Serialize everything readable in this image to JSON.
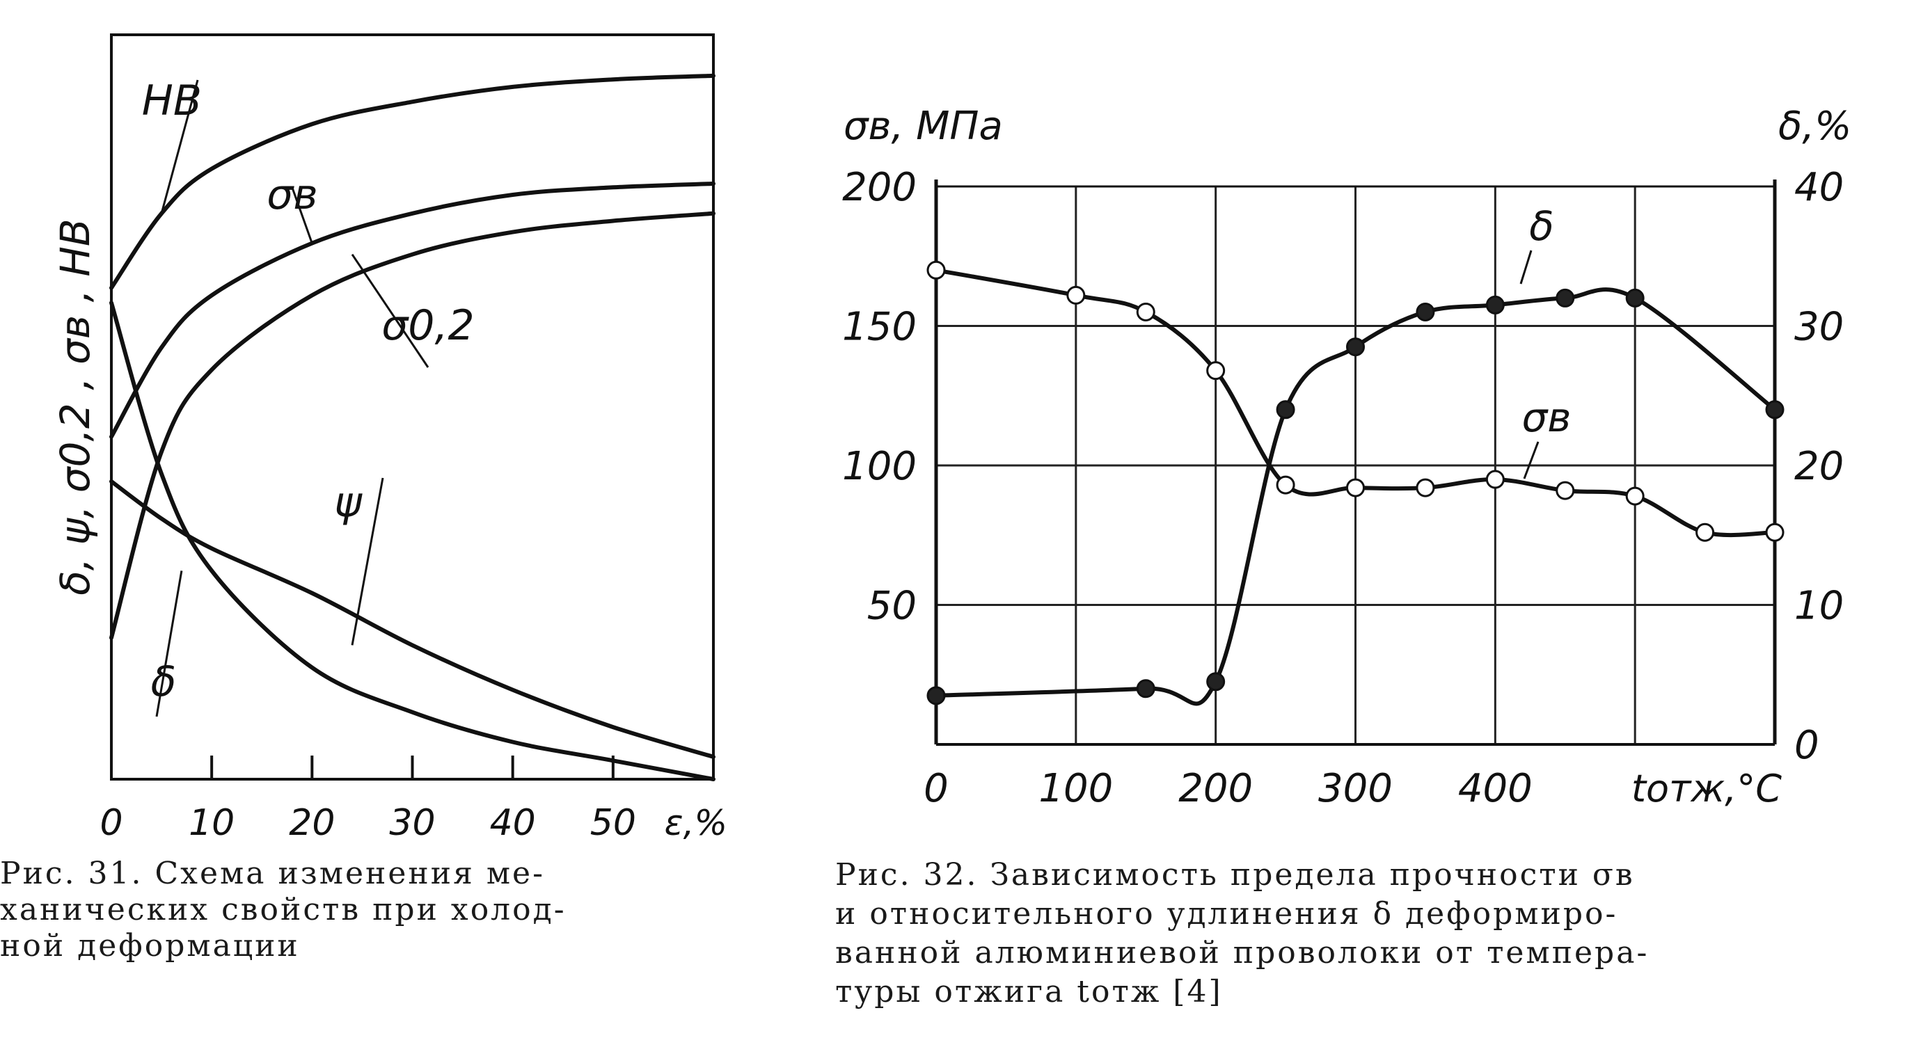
{
  "chart_data": [
    {
      "type": "line",
      "title": "",
      "xlabel": "ε,%",
      "ylabel": "δ, ψ, σ0,2 , σв , HB",
      "x_ticks": [
        "0",
        "10",
        "20",
        "30",
        "40",
        "50"
      ],
      "xlim": [
        0,
        60
      ],
      "ylim": [
        0,
        100
      ],
      "grid": false,
      "series": [
        {
          "name": "HB",
          "x": [
            0,
            5,
            10,
            20,
            30,
            40,
            50,
            60
          ],
          "y": [
            66,
            76,
            82,
            88,
            91,
            93,
            94,
            94.5
          ]
        },
        {
          "name": "σв",
          "x": [
            0,
            5,
            10,
            20,
            30,
            40,
            50,
            60
          ],
          "y": [
            46,
            58,
            65,
            72,
            76,
            78.5,
            79.5,
            80
          ]
        },
        {
          "name": "σ0,2",
          "x": [
            0,
            5,
            10,
            20,
            30,
            40,
            50,
            60
          ],
          "y": [
            19,
            44,
            55,
            65,
            70.5,
            73.5,
            75,
            76
          ]
        },
        {
          "name": "ψ",
          "x": [
            0,
            5,
            10,
            20,
            30,
            40,
            50,
            60
          ],
          "y": [
            40,
            35,
            31,
            25,
            18,
            12,
            7,
            3
          ]
        },
        {
          "name": "δ",
          "x": [
            0,
            5,
            10,
            20,
            30,
            40,
            50,
            60
          ],
          "y": [
            64,
            41,
            28,
            15,
            9,
            5,
            2.5,
            0
          ]
        }
      ],
      "caption": {
        "lines": [
          "Рис. 31. Схема изменения ме-",
          "ханических свойств при холод-",
          "ной деформации"
        ]
      }
    },
    {
      "type": "line",
      "title": "",
      "xlabel": "tотж,°C",
      "ylabel_left": "σв, МПа",
      "ylabel_right": "δ,%",
      "x_ticks": [
        "0",
        "100",
        "200",
        "300",
        "400"
      ],
      "y_left_ticks": [
        "50",
        "100",
        "150",
        "200"
      ],
      "y_right_ticks": [
        "0",
        "10",
        "20",
        "30",
        "40"
      ],
      "xlim": [
        0,
        600
      ],
      "ylim_left": [
        0,
        200
      ],
      "ylim_right": [
        0,
        40
      ],
      "grid": true,
      "series": [
        {
          "name": "σв",
          "axis": "left",
          "marker": "open-circle",
          "x": [
            0,
            100,
            150,
            200,
            250,
            300,
            350,
            400,
            450,
            500,
            550,
            600
          ],
          "y": [
            170,
            161,
            155,
            134,
            93,
            92,
            92,
            95,
            91,
            89,
            76,
            76
          ]
        },
        {
          "name": "δ",
          "axis": "right",
          "marker": "filled-circle",
          "x": [
            0,
            150,
            200,
            250,
            300,
            350,
            400,
            450,
            500,
            600
          ],
          "y": [
            3.5,
            4,
            4.5,
            24,
            28.5,
            31,
            31.5,
            32,
            32,
            24
          ]
        }
      ],
      "caption": {
        "lines": [
          "Рис. 32. Зависимость предела прочности σв",
          "и относительного удлинения δ деформиро-",
          "ванной алюминиевой проволоки от темпера-",
          "туры отжига tотж [4]"
        ]
      }
    }
  ]
}
